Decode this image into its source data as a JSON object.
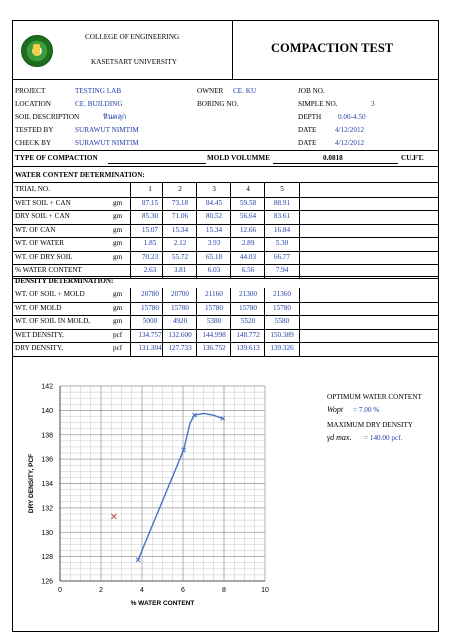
{
  "header": {
    "college": "COLLEGE OF ENGINEERING",
    "university": "KASETSART UNIVERSITY",
    "title": "COMPACTION TEST"
  },
  "info": {
    "project_label": "PROJECT",
    "project_value": "TESTING LAB",
    "location_label": "LOCATION",
    "location_value": "CE. BUILDING",
    "soil_label": "SOIL DESCRIPTION",
    "soil_value": "หินคลุก",
    "tested_label": "TESTED BY",
    "tested_value": "SURAWUT NIMTIM",
    "check_label": "CHECK BY",
    "check_value": "SURAWUT NIMTIM",
    "owner_label": "OWNER",
    "owner_value": "CE. KU",
    "boring_label": "BORING NO.",
    "job_label": "JOB NO.",
    "sample_label": "SIMPLE NO.",
    "sample_value": "3",
    "depth_label": "DEPTH",
    "depth_value": "0.00-4.50",
    "date1_label": "DATE",
    "date1_value": "4/12/2012",
    "date2_label": "DATE",
    "date2_value": "4/12/2012"
  },
  "compaction": {
    "type_label": "TYPE OF COMPACTION",
    "mold_label": "MOLD VOLUMME",
    "mold_value": "0.0818",
    "mold_unit": "CU.FT."
  },
  "water": {
    "section_title": "WATER CONTENT DETERMINATION:",
    "rows": [
      {
        "label": "TRIAL NO.",
        "unit": "",
        "values": [
          "1",
          "2",
          "3",
          "4",
          "5"
        ],
        "blue": false
      },
      {
        "label": "WET SOIL + CAN",
        "unit": "gm",
        "values": [
          "87.15",
          "73.18",
          "84.45",
          "59.58",
          "88.91"
        ],
        "blue": true
      },
      {
        "label": "DRY SOIL + CAN",
        "unit": "gm",
        "values": [
          "85.30",
          "71.06",
          "80.52",
          "56.64",
          "83.61"
        ],
        "blue": true
      },
      {
        "label": "WT. OF CAN",
        "unit": "gm",
        "values": [
          "15.07",
          "15.34",
          "15.34",
          "12.66",
          "16.84"
        ],
        "blue": true
      },
      {
        "label": "WT. OF WATER",
        "unit": "gm",
        "values": [
          "1.85",
          "2.12",
          "3.93",
          "2.89",
          "5.30"
        ],
        "blue": true
      },
      {
        "label": "WT. OF DRY SOIL",
        "unit": "gm",
        "values": [
          "70.23",
          "55.72",
          "65.18",
          "44.03",
          "66.77"
        ],
        "blue": true
      },
      {
        "label": "% WATER CONTENT",
        "unit": "",
        "values": [
          "2.63",
          "3.81",
          "6.03",
          "6.56",
          "7.94"
        ],
        "blue": true
      }
    ]
  },
  "density": {
    "section_title": "DENSITY DETERMINATION:",
    "rows": [
      {
        "label": "WT. OF SOIL + MOLD",
        "unit": "gm",
        "values": [
          "20780",
          "20700",
          "21160",
          "21300",
          "21360"
        ]
      },
      {
        "label": "WT. OF MOLD",
        "unit": "gm",
        "values": [
          "15780",
          "15780",
          "15780",
          "15780",
          "15780"
        ]
      },
      {
        "label": "WT. OF SOIL IN MOLD,",
        "unit": "gm",
        "values": [
          "5000",
          "4920",
          "5380",
          "5520",
          "5580"
        ]
      },
      {
        "label": "WET DENSITY,",
        "unit": "pcf",
        "values": [
          "134.757",
          "132.600",
          "144.998",
          "148.772",
          "150.389"
        ]
      },
      {
        "label": "DRY DENSITY,",
        "unit": "pcf",
        "values": [
          "131.304",
          "127.733",
          "136.752",
          "139.613",
          "139.326"
        ]
      }
    ]
  },
  "results": {
    "omc_title": "OPTIMUM WATER CONTENT",
    "omc_symbol": "Wopt",
    "omc_value": "= 7.00 %",
    "mdd_title": "MAXIMUM DRY DENSITY",
    "mdd_symbol": "γd max.",
    "mdd_value": "= 140.00 pcf."
  },
  "chart_data": {
    "type": "scatter",
    "xlabel": "% WATER CONTENT",
    "ylabel": "DRY DENSITY, PCF",
    "xlim": [
      0,
      10
    ],
    "ylim": [
      126,
      142
    ],
    "xticks": [
      0,
      2,
      4,
      6,
      8,
      10
    ],
    "yticks": [
      126,
      128,
      130,
      132,
      134,
      136,
      138,
      140,
      142
    ],
    "grid": true,
    "points": [
      {
        "x": 3.81,
        "y": 127.73
      },
      {
        "x": 6.03,
        "y": 136.75
      },
      {
        "x": 6.56,
        "y": 139.61
      },
      {
        "x": 7.94,
        "y": 139.33
      }
    ],
    "curve": [
      {
        "x": 3.81,
        "y": 127.73
      },
      {
        "x": 6.03,
        "y": 136.75
      },
      {
        "x": 6.35,
        "y": 139.0
      },
      {
        "x": 6.56,
        "y": 139.61
      },
      {
        "x": 7.0,
        "y": 139.75
      },
      {
        "x": 7.5,
        "y": 139.6
      },
      {
        "x": 7.94,
        "y": 139.33
      }
    ],
    "outlier": {
      "x": 2.63,
      "y": 131.3
    },
    "colors": {
      "line": "#4472c4",
      "outlier": "#c0504d"
    }
  }
}
